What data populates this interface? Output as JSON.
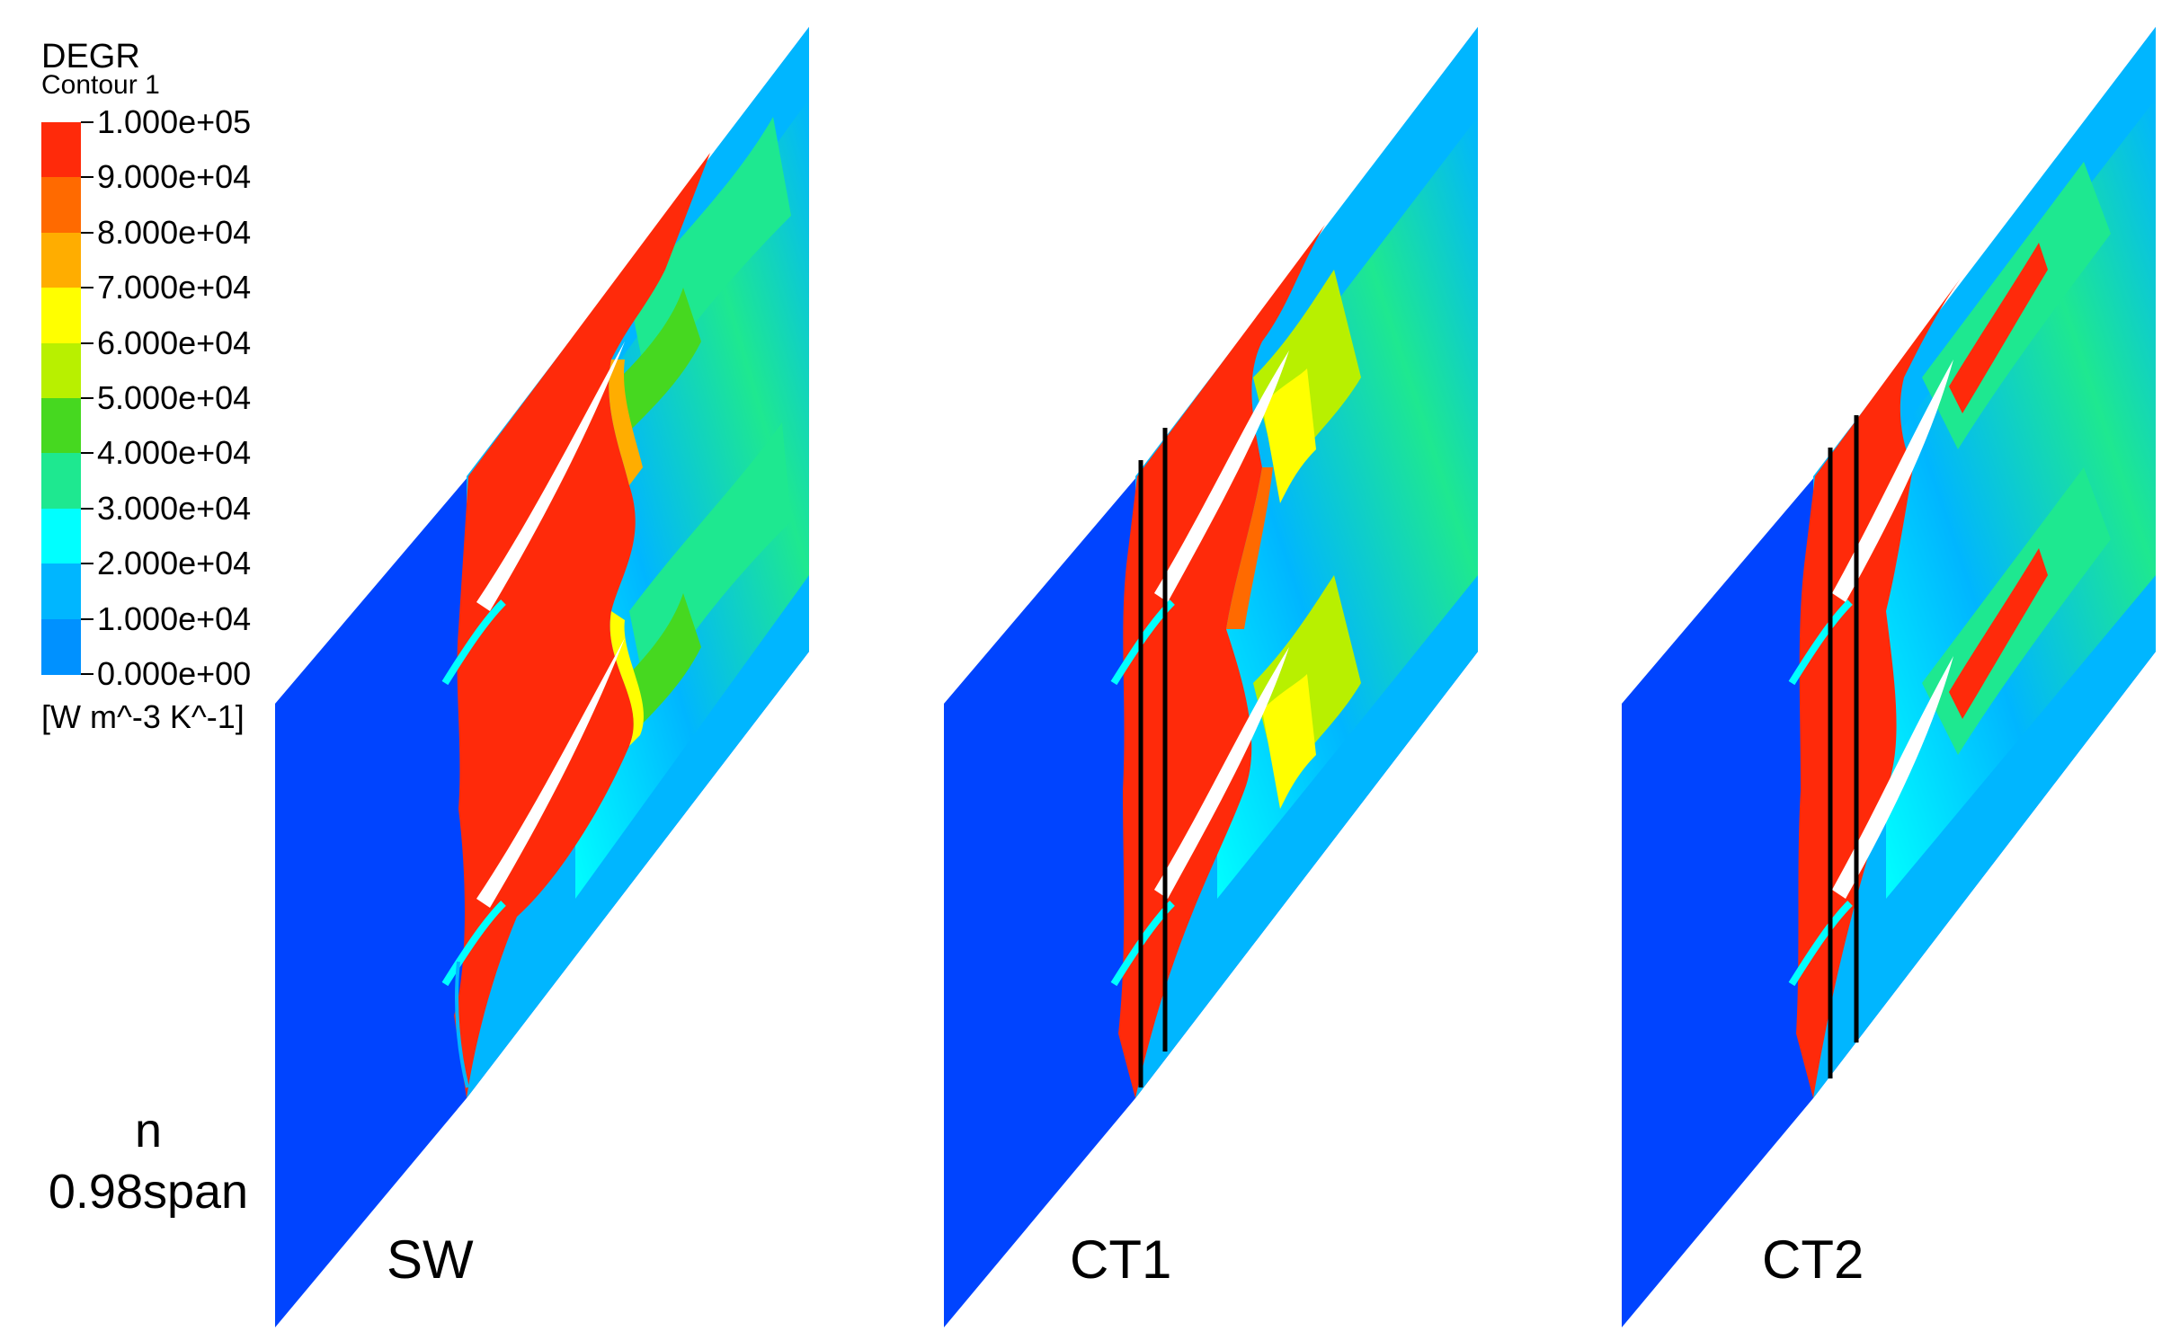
{
  "legend": {
    "title": "DEGR",
    "subtitle": "Contour 1",
    "units": "[W m^-3 K^-1]",
    "levels": [
      "1.000e+05",
      "9.000e+04",
      "8.000e+04",
      "7.000e+04",
      "6.000e+04",
      "5.000e+04",
      "4.000e+04",
      "3.000e+04",
      "2.000e+04",
      "1.000e+04",
      "0.000e+00"
    ],
    "colors": [
      "#ff2a0a",
      "#ff6a00",
      "#ffad00",
      "#ffff00",
      "#b8f000",
      "#46d820",
      "#1ee890",
      "#00ffff",
      "#00b6ff",
      "#0091ff",
      "#0044ff"
    ]
  },
  "row_label": {
    "line1": "n",
    "line2": "0.98span"
  },
  "panels": [
    {
      "label": "SW",
      "has_lines": false
    },
    {
      "label": "CT1",
      "has_lines": true
    },
    {
      "label": "CT2",
      "has_lines": true
    }
  ]
}
